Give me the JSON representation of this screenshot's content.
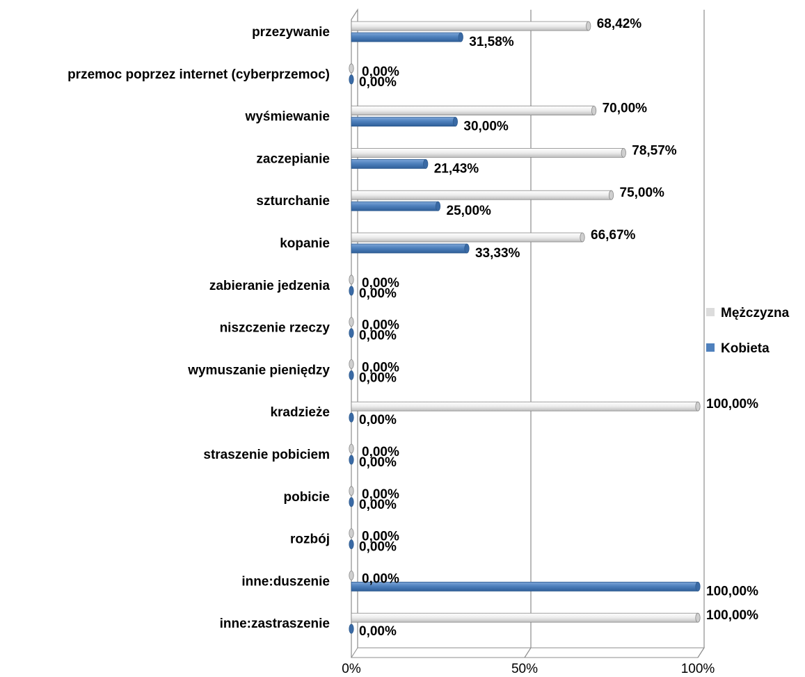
{
  "chart_data": {
    "type": "bar",
    "orientation": "horizontal",
    "stacked": false,
    "categories": [
      "przezywanie",
      "przemoc poprzez internet (cyberprzemoc)",
      "wyśmiewanie",
      "zaczepianie",
      "szturchanie",
      "kopanie",
      "zabieranie jedzenia",
      "niszczenie rzeczy",
      "wymuszanie pieniędzy",
      "kradzieże",
      "straszenie pobiciem",
      "pobicie",
      "rozbój",
      "inne:duszenie",
      "inne:zastraszenie"
    ],
    "series": [
      {
        "name": "Mężczyzna",
        "color": "#e4e4e4",
        "values": [
          68.42,
          0,
          70.0,
          78.57,
          75.0,
          66.67,
          0,
          0,
          0,
          100.0,
          0,
          0,
          0,
          0,
          100.0
        ],
        "labels": [
          "68,42%",
          "0,00%",
          "70,00%",
          "78,57%",
          "75,00%",
          "66,67%",
          "0,00%",
          "0,00%",
          "0,00%",
          "100,00%",
          "0,00%",
          "0,00%",
          "0,00%",
          "0,00%",
          "100,00%"
        ]
      },
      {
        "name": "Kobieta",
        "color": "#4f81bd",
        "values": [
          31.58,
          0,
          30.0,
          21.43,
          25.0,
          33.33,
          0,
          0,
          0,
          0,
          0,
          0,
          0,
          100.0,
          0
        ],
        "labels": [
          "31,58%",
          "0,00%",
          "30,00%",
          "21,43%",
          "25,00%",
          "33,33%",
          "0,00%",
          "0,00%",
          "0,00%",
          "0,00%",
          "0,00%",
          "0,00%",
          "0,00%",
          "100,00%",
          "0,00%"
        ]
      }
    ],
    "x_ticks": [
      "0%",
      "50%",
      "100%"
    ],
    "xlim": [
      0,
      100
    ],
    "legend_position": "right",
    "grid": "vertical",
    "title": "",
    "xlabel": "",
    "ylabel": ""
  }
}
